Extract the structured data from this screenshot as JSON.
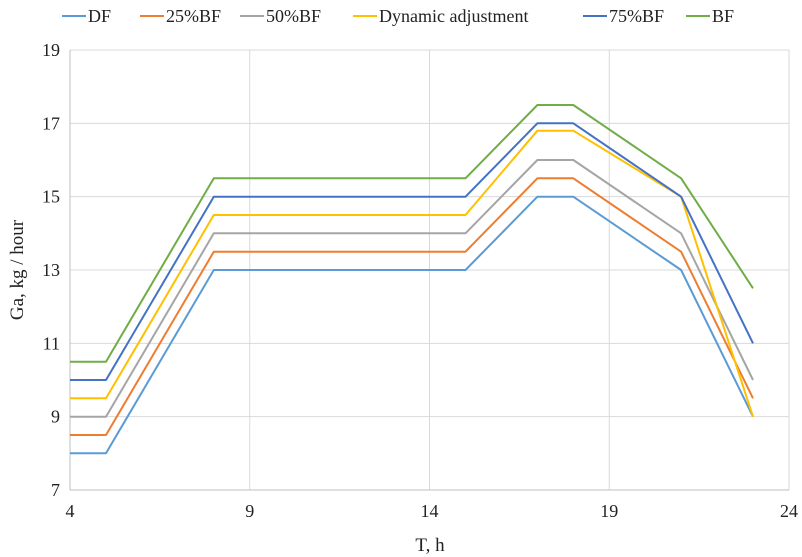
{
  "chart_data": {
    "type": "line",
    "title": "",
    "xlabel": "T, h",
    "ylabel": "Ga, kg / hour",
    "xlim": [
      4,
      24
    ],
    "ylim": [
      7,
      19
    ],
    "xticks": [
      4,
      9,
      14,
      19,
      24
    ],
    "yticks": [
      7,
      9,
      11,
      13,
      15,
      17,
      19
    ],
    "grid": true,
    "legend_position": "top",
    "x": [
      4,
      5,
      8,
      15,
      17,
      18,
      21,
      23
    ],
    "series": [
      {
        "name": "DF",
        "color": "#5B9BD5",
        "values": [
          8,
          8,
          13,
          13,
          15,
          15,
          13,
          9
        ]
      },
      {
        "name": "25%BF",
        "color": "#ED7D31",
        "values": [
          8.5,
          8.5,
          13.5,
          13.5,
          15.5,
          15.5,
          13.5,
          9.5
        ]
      },
      {
        "name": "50%BF",
        "color": "#A5A5A5",
        "values": [
          9,
          9,
          14,
          14,
          16,
          16,
          14,
          10
        ]
      },
      {
        "name": "Dynamic adjustment",
        "color": "#FFC000",
        "values": [
          9.5,
          9.5,
          14.5,
          14.5,
          16.8,
          16.8,
          15,
          9
        ]
      },
      {
        "name": "75%BF",
        "color": "#4472C4",
        "values": [
          10,
          10,
          15,
          15,
          17,
          17,
          15,
          11
        ]
      },
      {
        "name": "BF",
        "color": "#70AD47",
        "values": [
          10.5,
          10.5,
          15.5,
          15.5,
          17.5,
          17.5,
          15.5,
          12.5
        ]
      }
    ]
  }
}
